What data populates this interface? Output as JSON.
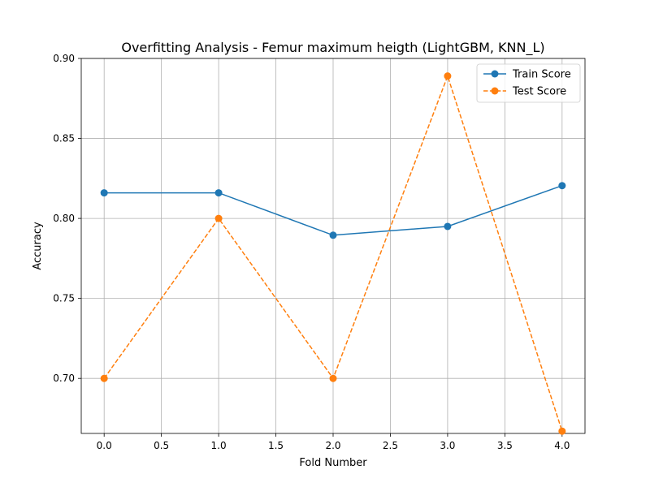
{
  "chart_data": {
    "type": "line",
    "title": "Overfitting Analysis - Femur maximum heigth (LightGBM, KNN_L)",
    "xlabel": "Fold Number",
    "ylabel": "Accuracy",
    "x": [
      0,
      1,
      2,
      3,
      4
    ],
    "xlim": [
      -0.2,
      4.2
    ],
    "ylim": [
      0.6656,
      0.9
    ],
    "xticks": [
      0.0,
      0.5,
      1.0,
      1.5,
      2.0,
      2.5,
      3.0,
      3.5,
      4.0
    ],
    "xtick_labels": [
      "0.0",
      "0.5",
      "1.0",
      "1.5",
      "2.0",
      "2.5",
      "3.0",
      "3.5",
      "4.0"
    ],
    "yticks": [
      0.7,
      0.75,
      0.8,
      0.85,
      0.9
    ],
    "ytick_labels": [
      "0.70",
      "0.75",
      "0.80",
      "0.85",
      "0.90"
    ],
    "grid": true,
    "legend_position": "top-right",
    "series": [
      {
        "name": "Train Score",
        "values": [
          0.816,
          0.816,
          0.7895,
          0.795,
          0.8205
        ],
        "color": "#1f77b4",
        "line_style": "solid",
        "marker": "circle"
      },
      {
        "name": "Test Score",
        "values": [
          0.7,
          0.8,
          0.7,
          0.889,
          0.667
        ],
        "color": "#ff7f0e",
        "line_style": "dashed",
        "marker": "circle"
      }
    ]
  }
}
